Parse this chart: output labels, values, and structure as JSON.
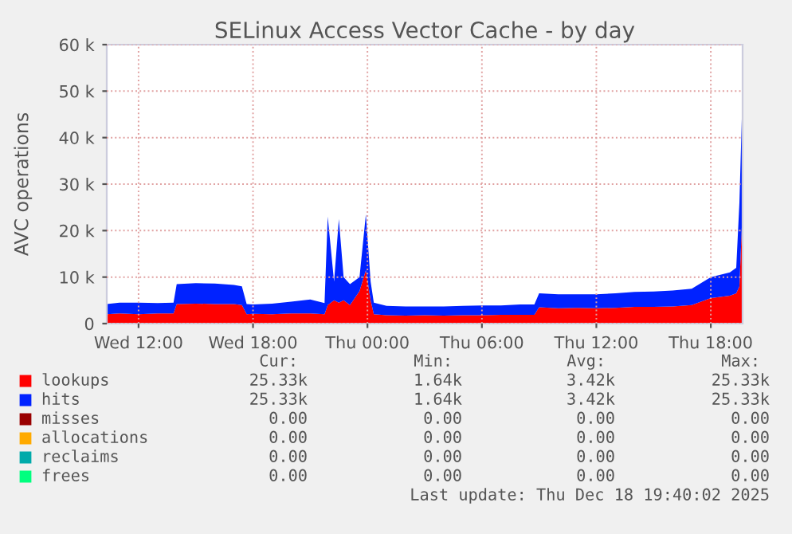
{
  "chart_data": {
    "type": "area",
    "stacked": true,
    "title": "SELinux Access Vector Cache - by day",
    "ylabel": "AVC operations",
    "x": [
      "2025-12-17T10:20",
      "2025-12-17T11:00",
      "2025-12-17T12:00",
      "2025-12-17T13:00",
      "2025-12-17T13:50",
      "2025-12-17T14:00",
      "2025-12-17T15:00",
      "2025-12-17T16:00",
      "2025-12-17T17:00",
      "2025-12-17T17:25",
      "2025-12-17T17:40",
      "2025-12-17T18:00",
      "2025-12-17T19:00",
      "2025-12-17T20:00",
      "2025-12-17T21:00",
      "2025-12-17T21:45",
      "2025-12-17T21:55",
      "2025-12-17T22:15",
      "2025-12-17T22:30",
      "2025-12-17T22:45",
      "2025-12-17T23:05",
      "2025-12-17T23:35",
      "2025-12-17T23:55",
      "2025-12-18T00:10",
      "2025-12-18T00:20",
      "2025-12-18T01:00",
      "2025-12-18T02:00",
      "2025-12-18T03:00",
      "2025-12-18T04:00",
      "2025-12-18T05:00",
      "2025-12-18T06:00",
      "2025-12-18T07:00",
      "2025-12-18T08:00",
      "2025-12-18T08:45",
      "2025-12-18T09:00",
      "2025-12-18T10:00",
      "2025-12-18T11:00",
      "2025-12-18T12:00",
      "2025-12-18T13:00",
      "2025-12-18T14:00",
      "2025-12-18T15:00",
      "2025-12-18T16:00",
      "2025-12-18T17:00",
      "2025-12-18T18:00",
      "2025-12-18T19:00",
      "2025-12-18T19:20",
      "2025-12-18T19:30",
      "2025-12-18T19:40"
    ],
    "series": [
      {
        "name": "lookups",
        "color": "#ff0000",
        "values": [
          2000,
          2200,
          2000,
          2200,
          2200,
          4200,
          4300,
          4200,
          4200,
          4000,
          2000,
          2100,
          2000,
          2200,
          2200,
          2000,
          4000,
          5000,
          4500,
          5000,
          4000,
          7000,
          11500,
          5000,
          2000,
          1800,
          1700,
          1800,
          1700,
          1800,
          1800,
          1900,
          1900,
          1900,
          3500,
          3300,
          3400,
          3300,
          3400,
          3600,
          3600,
          3700,
          4000,
          5500,
          6000,
          6500,
          8000,
          25000
        ]
      },
      {
        "name": "hits",
        "color": "#0022ff",
        "values": [
          2200,
          2300,
          2500,
          2200,
          2300,
          4300,
          4400,
          4400,
          4100,
          4000,
          2200,
          2000,
          2300,
          2500,
          3000,
          2400,
          19000,
          4000,
          18000,
          5000,
          4500,
          3000,
          12000,
          4000,
          2500,
          2000,
          2000,
          1900,
          2000,
          2000,
          2100,
          2000,
          2200,
          2200,
          3000,
          3000,
          2900,
          3000,
          3100,
          3200,
          3300,
          3400,
          3500,
          4500,
          5000,
          5500,
          18000,
          25000
        ]
      },
      {
        "name": "misses",
        "color": "#990000",
        "values": [
          null,
          null,
          null,
          null,
          null,
          null,
          null,
          null,
          null,
          null,
          null,
          null,
          null,
          null,
          null,
          null,
          null,
          null,
          null,
          null,
          null,
          null,
          null,
          null,
          null,
          null,
          null,
          null,
          null,
          null,
          null,
          null,
          null,
          null,
          null,
          null,
          null,
          null,
          null,
          null,
          null,
          null,
          null,
          null,
          null,
          null,
          null,
          null
        ]
      },
      {
        "name": "allocations",
        "color": "#ffaa00",
        "values": [
          null,
          null,
          null,
          null,
          null,
          null,
          null,
          null,
          null,
          null,
          null,
          null,
          null,
          null,
          null,
          null,
          null,
          null,
          null,
          null,
          null,
          null,
          null,
          null,
          null,
          null,
          null,
          null,
          null,
          null,
          null,
          null,
          null,
          null,
          null,
          null,
          null,
          null,
          null,
          null,
          null,
          null,
          null,
          null,
          null,
          null,
          null,
          null
        ]
      },
      {
        "name": "reclaims",
        "color": "#00aaaa",
        "values": [
          null,
          null,
          null,
          null,
          null,
          null,
          null,
          null,
          null,
          null,
          null,
          null,
          null,
          null,
          null,
          null,
          null,
          null,
          null,
          null,
          null,
          null,
          null,
          null,
          null,
          null,
          null,
          null,
          null,
          null,
          null,
          null,
          null,
          null,
          null,
          null,
          null,
          null,
          null,
          null,
          null,
          null,
          null,
          null,
          null,
          null,
          null,
          null
        ]
      },
      {
        "name": "frees",
        "color": "#00ff7f",
        "values": [
          null,
          null,
          null,
          null,
          null,
          null,
          null,
          null,
          null,
          null,
          null,
          null,
          null,
          null,
          null,
          null,
          null,
          null,
          null,
          null,
          null,
          null,
          null,
          null,
          null,
          null,
          null,
          null,
          null,
          null,
          null,
          null,
          null,
          null,
          null,
          null,
          null,
          null,
          null,
          null,
          null,
          null,
          null,
          null,
          null,
          null,
          null,
          null
        ]
      }
    ],
    "xlim": [
      "2025-12-17T10:20",
      "2025-12-18T19:40"
    ],
    "xticks": [
      {
        "value": "2025-12-17T12:00",
        "label": "Wed 12:00"
      },
      {
        "value": "2025-12-17T18:00",
        "label": "Wed 18:00"
      },
      {
        "value": "2025-12-18T00:00",
        "label": "Thu 00:00"
      },
      {
        "value": "2025-12-18T06:00",
        "label": "Thu 06:00"
      },
      {
        "value": "2025-12-18T12:00",
        "label": "Thu 12:00"
      },
      {
        "value": "2025-12-18T18:00",
        "label": "Thu 18:00"
      }
    ],
    "ylim": [
      0,
      60000
    ],
    "yticks": [
      0,
      {
        "value": 10000,
        "label": "10 k"
      },
      {
        "value": 20000,
        "label": "20 k"
      },
      {
        "value": 30000,
        "label": "30 k"
      },
      {
        "value": 40000,
        "label": "40 k"
      },
      {
        "value": 50000,
        "label": "50 k"
      },
      {
        "value": 60000,
        "label": "60 k"
      }
    ],
    "grid": true,
    "legend": "bottom",
    "annotations": [
      "Cur:",
      "Min:",
      "Avg:",
      "Max:",
      "25.33k",
      "1.64k",
      "3.42k",
      "25.33k",
      "25.33k",
      "1.64k",
      "3.42k",
      "25.33k",
      "0.00",
      "0.00",
      "0.00",
      "0.00",
      "0.00",
      "0.00",
      "0.00",
      "0.00",
      "0.00",
      "0.00",
      "0.00",
      "0.00",
      "0.00",
      "0.00",
      "0.00",
      "0.00",
      "Last update: Thu Dec 18 19:40:02 2025"
    ]
  }
}
